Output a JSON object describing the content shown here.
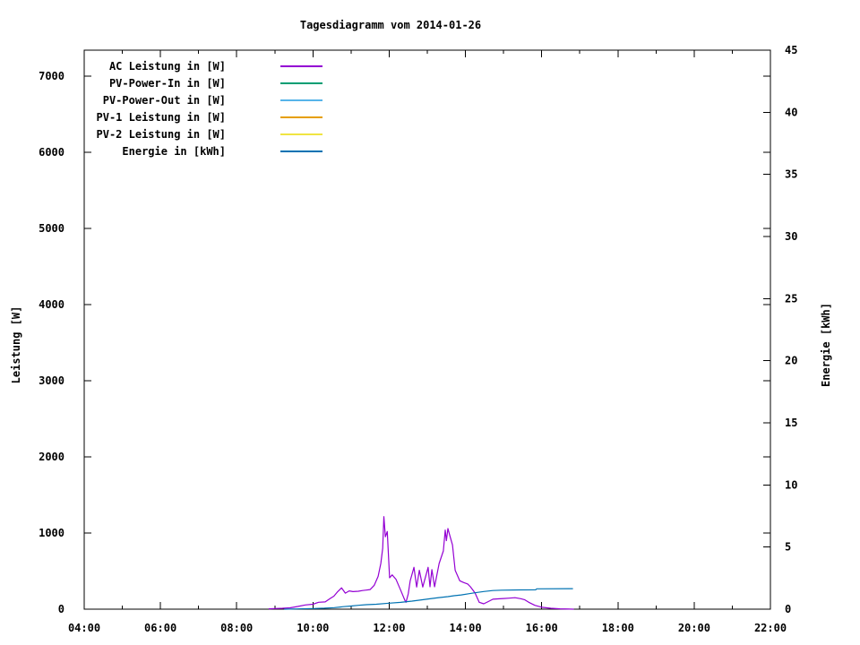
{
  "chart_data": {
    "type": "line",
    "title": "Tagesdiagramm vom 2014-01-26",
    "xlabel": "",
    "ylabel": "Leistung [W]",
    "y2label": "Energie [kWh]",
    "x_unit": "time-of-day (hours)",
    "xlim": [
      4,
      22
    ],
    "ylim": [
      0,
      7340
    ],
    "y2lim": [
      0,
      45
    ],
    "grid": false,
    "legend_position": "top-left-inside",
    "x_ticks": [
      {
        "value": 4,
        "label": "04:00"
      },
      {
        "value": 6,
        "label": "06:00"
      },
      {
        "value": 8,
        "label": "08:00"
      },
      {
        "value": 10,
        "label": "10:00"
      },
      {
        "value": 12,
        "label": "12:00"
      },
      {
        "value": 14,
        "label": "14:00"
      },
      {
        "value": 16,
        "label": "16:00"
      },
      {
        "value": 18,
        "label": "18:00"
      },
      {
        "value": 20,
        "label": "20:00"
      },
      {
        "value": 22,
        "label": "22:00"
      }
    ],
    "x_minor_ticks": [
      5,
      7,
      9,
      11,
      13,
      15,
      17,
      19,
      21
    ],
    "y_ticks": [
      {
        "value": 0,
        "label": "0"
      },
      {
        "value": 1000,
        "label": "1000"
      },
      {
        "value": 2000,
        "label": "2000"
      },
      {
        "value": 3000,
        "label": "3000"
      },
      {
        "value": 4000,
        "label": "4000"
      },
      {
        "value": 5000,
        "label": "5000"
      },
      {
        "value": 6000,
        "label": "6000"
      },
      {
        "value": 7000,
        "label": "7000"
      }
    ],
    "y2_ticks": [
      {
        "value": 0,
        "label": "0"
      },
      {
        "value": 5,
        "label": "5"
      },
      {
        "value": 10,
        "label": "10"
      },
      {
        "value": 15,
        "label": "15"
      },
      {
        "value": 20,
        "label": "20"
      },
      {
        "value": 25,
        "label": "25"
      },
      {
        "value": 30,
        "label": "30"
      },
      {
        "value": 35,
        "label": "35"
      },
      {
        "value": 40,
        "label": "40"
      },
      {
        "value": 45,
        "label": "45"
      }
    ],
    "series": [
      {
        "name": "AC Leistung in [W]",
        "slug": "ac-leistung",
        "color": "#9400d3",
        "axis": "y",
        "points": [
          [
            8.85,
            5
          ],
          [
            9.0,
            8
          ],
          [
            9.2,
            12
          ],
          [
            9.4,
            18
          ],
          [
            9.6,
            35
          ],
          [
            9.8,
            55
          ],
          [
            10.0,
            65
          ],
          [
            10.15,
            90
          ],
          [
            10.32,
            95
          ],
          [
            10.45,
            140
          ],
          [
            10.55,
            170
          ],
          [
            10.65,
            230
          ],
          [
            10.75,
            280
          ],
          [
            10.85,
            210
          ],
          [
            10.95,
            240
          ],
          [
            11.05,
            230
          ],
          [
            11.19,
            235
          ],
          [
            11.3,
            245
          ],
          [
            11.4,
            250
          ],
          [
            11.5,
            258
          ],
          [
            11.61,
            314
          ],
          [
            11.71,
            430
          ],
          [
            11.78,
            600
          ],
          [
            11.83,
            800
          ],
          [
            11.86,
            1215
          ],
          [
            11.9,
            950
          ],
          [
            11.95,
            1020
          ],
          [
            12.01,
            412
          ],
          [
            12.08,
            450
          ],
          [
            12.18,
            390
          ],
          [
            12.3,
            250
          ],
          [
            12.41,
            118
          ],
          [
            12.44,
            90
          ],
          [
            12.5,
            200
          ],
          [
            12.55,
            373
          ],
          [
            12.65,
            549
          ],
          [
            12.72,
            290
          ],
          [
            12.79,
            510
          ],
          [
            12.88,
            290
          ],
          [
            13.02,
            549
          ],
          [
            13.07,
            294
          ],
          [
            13.12,
            520
          ],
          [
            13.19,
            294
          ],
          [
            13.31,
            600
          ],
          [
            13.42,
            765
          ],
          [
            13.47,
            1039
          ],
          [
            13.5,
            900
          ],
          [
            13.54,
            1059
          ],
          [
            13.6,
            950
          ],
          [
            13.66,
            843
          ],
          [
            13.73,
            510
          ],
          [
            13.85,
            373
          ],
          [
            13.95,
            350
          ],
          [
            14.06,
            330
          ],
          [
            14.13,
            294
          ],
          [
            14.25,
            215
          ],
          [
            14.36,
            90
          ],
          [
            14.48,
            70
          ],
          [
            14.6,
            100
          ],
          [
            14.72,
            130
          ],
          [
            14.85,
            135
          ],
          [
            15.0,
            140
          ],
          [
            15.15,
            145
          ],
          [
            15.3,
            150
          ],
          [
            15.45,
            138
          ],
          [
            15.55,
            125
          ],
          [
            15.66,
            90
          ],
          [
            15.82,
            50
          ],
          [
            16.01,
            25
          ],
          [
            16.24,
            12
          ],
          [
            16.48,
            5
          ],
          [
            16.83,
            0
          ]
        ]
      },
      {
        "name": "PV-Power-In in [W]",
        "slug": "pv-power-in",
        "color": "#009e73",
        "axis": "y",
        "points": []
      },
      {
        "name": "PV-Power-Out in [W]",
        "slug": "pv-power-out",
        "color": "#56b4e9",
        "axis": "y",
        "points": []
      },
      {
        "name": "PV-1 Leistung in [W]",
        "slug": "pv1-leistung",
        "color": "#e69f00",
        "axis": "y",
        "points": []
      },
      {
        "name": "PV-2 Leistung in [W]",
        "slug": "pv2-leistung",
        "color": "#f0e442",
        "axis": "y",
        "points": []
      },
      {
        "name": "Energie in [kWh]",
        "slug": "energie",
        "color": "#0072b2",
        "axis": "y2",
        "points": [
          [
            9.26,
            0.0
          ],
          [
            9.6,
            0.02
          ],
          [
            10.0,
            0.05
          ],
          [
            10.3,
            0.08
          ],
          [
            10.56,
            0.12
          ],
          [
            10.8,
            0.2
          ],
          [
            11.0,
            0.25
          ],
          [
            11.19,
            0.31
          ],
          [
            11.4,
            0.36
          ],
          [
            11.66,
            0.4
          ],
          [
            12.0,
            0.48
          ],
          [
            12.3,
            0.55
          ],
          [
            12.6,
            0.65
          ],
          [
            12.85,
            0.75
          ],
          [
            13.07,
            0.84
          ],
          [
            13.3,
            0.93
          ],
          [
            13.54,
            1.01
          ],
          [
            13.7,
            1.08
          ],
          [
            13.89,
            1.15
          ],
          [
            14.1,
            1.25
          ],
          [
            14.25,
            1.32
          ],
          [
            14.48,
            1.42
          ],
          [
            14.72,
            1.5
          ],
          [
            14.95,
            1.53
          ],
          [
            15.42,
            1.55
          ],
          [
            15.84,
            1.56
          ],
          [
            15.87,
            1.64
          ],
          [
            16.81,
            1.65
          ]
        ]
      }
    ]
  }
}
